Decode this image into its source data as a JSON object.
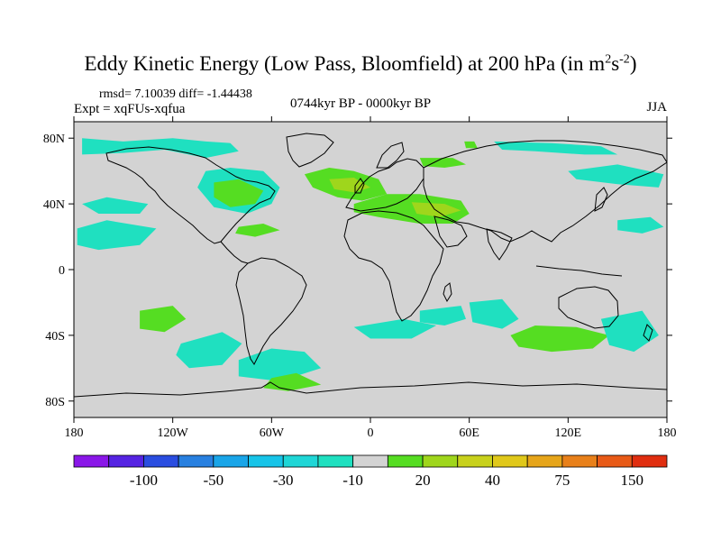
{
  "title": {
    "main": "Eddy Kinetic Energy (Low Pass, Bloomfield) at 200 hPa (in m",
    "sup1": "2",
    "mid": "s",
    "sup2": "-2",
    "close": ")"
  },
  "stats_text": "rmsd= 7.10039 diff= -1.44438",
  "expt_text": "Expt = xqFUs-xqfua",
  "period_text": "0744kyr BP - 0000kyr BP",
  "season_text": "JJA",
  "colors": {
    "land_gray": "#d3d3d3",
    "cyan": "#1fe0c0",
    "green": "#55dd22",
    "lime": "#9fd61c",
    "coast": "#000000"
  },
  "chart_data": {
    "type": "heatmap",
    "projection": "cylindrical-equidistant",
    "variable": "Eddy Kinetic Energy difference at 200 hPa",
    "xlim": [
      -180,
      180
    ],
    "ylim": [
      -90,
      90
    ],
    "x_ticks": [
      {
        "value": -180,
        "label": "180"
      },
      {
        "value": -120,
        "label": "120W"
      },
      {
        "value": -60,
        "label": "60W"
      },
      {
        "value": 0,
        "label": "0"
      },
      {
        "value": 60,
        "label": "60E"
      },
      {
        "value": 120,
        "label": "120E"
      },
      {
        "value": 180,
        "label": "180"
      }
    ],
    "y_ticks": [
      {
        "value": 80,
        "label": "80N"
      },
      {
        "value": 40,
        "label": "40N"
      },
      {
        "value": 0,
        "label": "0"
      },
      {
        "value": -40,
        "label": "40S"
      },
      {
        "value": -80,
        "label": "80S"
      }
    ],
    "colorbar": {
      "colors": [
        "#8a17e8",
        "#5523e2",
        "#2a4de0",
        "#2880e0",
        "#19a5e8",
        "#17c4e8",
        "#1fd6d6",
        "#1fe0c0",
        "#d3d3d3",
        "#55dd22",
        "#9fd61c",
        "#c8d11c",
        "#e0c81a",
        "#e6a51a",
        "#e8801a",
        "#e85a17",
        "#e02e10"
      ],
      "labels": [
        {
          "after_index": 1,
          "text": "-100"
        },
        {
          "after_index": 3,
          "text": "-50"
        },
        {
          "after_index": 5,
          "text": "-30"
        },
        {
          "after_index": 7,
          "text": "-10"
        },
        {
          "after_index": 9,
          "text": "20"
        },
        {
          "after_index": 11,
          "text": "40"
        },
        {
          "after_index": 13,
          "text": "75"
        },
        {
          "after_index": 15,
          "text": "150"
        }
      ]
    },
    "regions": [
      {
        "name": "north-atlantic-pacific-band",
        "level": "cyan",
        "pts": [
          [
            -175,
            80
          ],
          [
            -150,
            78
          ],
          [
            -120,
            80
          ],
          [
            -100,
            78
          ],
          [
            -85,
            77
          ],
          [
            -80,
            72
          ],
          [
            -100,
            68
          ],
          [
            -125,
            73
          ],
          [
            -150,
            71
          ],
          [
            -175,
            70
          ]
        ]
      },
      {
        "name": "north-america-east",
        "level": "cyan",
        "pts": [
          [
            -100,
            60
          ],
          [
            -85,
            62
          ],
          [
            -65,
            60
          ],
          [
            -55,
            50
          ],
          [
            -60,
            40
          ],
          [
            -75,
            34
          ],
          [
            -95,
            38
          ],
          [
            -105,
            50
          ]
        ]
      },
      {
        "name": "north-america-east-core",
        "level": "green",
        "pts": [
          [
            -95,
            53
          ],
          [
            -80,
            55
          ],
          [
            -65,
            48
          ],
          [
            -70,
            40
          ],
          [
            -85,
            38
          ],
          [
            -95,
            44
          ]
        ]
      },
      {
        "name": "north-atlantic-green",
        "level": "green",
        "pts": [
          [
            -40,
            58
          ],
          [
            -25,
            62
          ],
          [
            -10,
            60
          ],
          [
            5,
            55
          ],
          [
            10,
            46
          ],
          [
            -5,
            42
          ],
          [
            -20,
            44
          ],
          [
            -35,
            50
          ]
        ]
      },
      {
        "name": "north-atlantic-core",
        "level": "lime",
        "pts": [
          [
            -25,
            55
          ],
          [
            -10,
            56
          ],
          [
            0,
            50
          ],
          [
            -10,
            47
          ],
          [
            -22,
            49
          ]
        ]
      },
      {
        "name": "mediterranean-band",
        "level": "green",
        "pts": [
          [
            -10,
            40
          ],
          [
            10,
            46
          ],
          [
            30,
            46
          ],
          [
            55,
            42
          ],
          [
            60,
            34
          ],
          [
            50,
            28
          ],
          [
            30,
            28
          ],
          [
            5,
            32
          ],
          [
            -10,
            35
          ]
        ]
      },
      {
        "name": "middle-east-core",
        "level": "lime",
        "pts": [
          [
            25,
            41
          ],
          [
            45,
            40
          ],
          [
            55,
            36
          ],
          [
            42,
            32
          ],
          [
            28,
            34
          ]
        ]
      },
      {
        "name": "russia-north",
        "level": "green",
        "pts": [
          [
            30,
            68
          ],
          [
            50,
            68
          ],
          [
            58,
            64
          ],
          [
            45,
            62
          ],
          [
            32,
            63
          ]
        ]
      },
      {
        "name": "siberia-north",
        "level": "cyan",
        "pts": [
          [
            75,
            78
          ],
          [
            110,
            77
          ],
          [
            140,
            75
          ],
          [
            150,
            70
          ],
          [
            130,
            70
          ],
          [
            100,
            72
          ],
          [
            80,
            73
          ]
        ]
      },
      {
        "name": "kara-sea",
        "level": "green",
        "pts": [
          [
            57,
            78
          ],
          [
            63,
            78
          ],
          [
            65,
            74
          ],
          [
            58,
            74
          ]
        ]
      },
      {
        "name": "north-pacific-east",
        "level": "cyan",
        "pts": [
          [
            120,
            60
          ],
          [
            150,
            64
          ],
          [
            178,
            58
          ],
          [
            175,
            50
          ],
          [
            150,
            52
          ],
          [
            125,
            55
          ]
        ]
      },
      {
        "name": "pacific-west-mid",
        "level": "cyan",
        "pts": [
          [
            150,
            30
          ],
          [
            170,
            32
          ],
          [
            178,
            26
          ],
          [
            165,
            22
          ],
          [
            150,
            24
          ]
        ]
      },
      {
        "name": "central-pacific",
        "level": "cyan",
        "pts": [
          [
            -175,
            40
          ],
          [
            -160,
            44
          ],
          [
            -135,
            40
          ],
          [
            -140,
            34
          ],
          [
            -165,
            34
          ]
        ]
      },
      {
        "name": "caribbean",
        "level": "green",
        "pts": [
          [
            -80,
            26
          ],
          [
            -65,
            28
          ],
          [
            -55,
            24
          ],
          [
            -70,
            20
          ],
          [
            -82,
            22
          ]
        ]
      },
      {
        "name": "east-pacific-north",
        "level": "cyan",
        "pts": [
          [
            -178,
            25
          ],
          [
            -160,
            30
          ],
          [
            -130,
            25
          ],
          [
            -140,
            15
          ],
          [
            -165,
            12
          ],
          [
            -178,
            15
          ]
        ]
      },
      {
        "name": "south-indian",
        "level": "cyan",
        "pts": [
          [
            60,
            -20
          ],
          [
            80,
            -18
          ],
          [
            90,
            -30
          ],
          [
            80,
            -36
          ],
          [
            62,
            -32
          ]
        ]
      },
      {
        "name": "south-indian-2",
        "level": "cyan",
        "pts": [
          [
            30,
            -25
          ],
          [
            55,
            -22
          ],
          [
            58,
            -30
          ],
          [
            45,
            -34
          ],
          [
            30,
            -32
          ]
        ]
      },
      {
        "name": "southern-ocean-green",
        "level": "green",
        "pts": [
          [
            85,
            -40
          ],
          [
            100,
            -34
          ],
          [
            125,
            -35
          ],
          [
            145,
            -40
          ],
          [
            135,
            -48
          ],
          [
            110,
            -50
          ],
          [
            90,
            -47
          ]
        ]
      },
      {
        "name": "south-pacific-west-green",
        "level": "green",
        "pts": [
          [
            -140,
            -25
          ],
          [
            -120,
            -22
          ],
          [
            -112,
            -30
          ],
          [
            -125,
            -38
          ],
          [
            -140,
            -36
          ]
        ]
      },
      {
        "name": "tasman-cyan",
        "level": "cyan",
        "pts": [
          [
            140,
            -30
          ],
          [
            165,
            -25
          ],
          [
            175,
            -40
          ],
          [
            160,
            -50
          ],
          [
            145,
            -46
          ]
        ]
      },
      {
        "name": "south-america-east",
        "level": "cyan",
        "pts": [
          [
            -80,
            -55
          ],
          [
            -60,
            -48
          ],
          [
            -40,
            -50
          ],
          [
            -30,
            -60
          ],
          [
            -55,
            -68
          ],
          [
            -80,
            -65
          ]
        ]
      },
      {
        "name": "south-pacific-east",
        "level": "cyan",
        "pts": [
          [
            -115,
            -45
          ],
          [
            -90,
            -38
          ],
          [
            -78,
            -45
          ],
          [
            -90,
            -58
          ],
          [
            -110,
            -60
          ],
          [
            -118,
            -52
          ]
        ]
      },
      {
        "name": "antarctic-peninsula",
        "level": "green",
        "pts": [
          [
            -60,
            -66
          ],
          [
            -45,
            -63
          ],
          [
            -30,
            -70
          ],
          [
            -50,
            -74
          ],
          [
            -65,
            -72
          ]
        ]
      },
      {
        "name": "south-atlantic-cyan",
        "level": "cyan",
        "pts": [
          [
            -10,
            -35
          ],
          [
            20,
            -30
          ],
          [
            40,
            -34
          ],
          [
            25,
            -42
          ],
          [
            0,
            -42
          ]
        ]
      }
    ]
  }
}
